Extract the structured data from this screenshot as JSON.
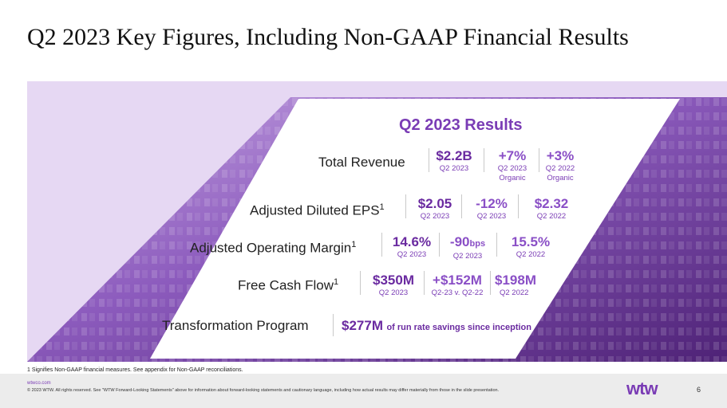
{
  "slide": {
    "title": "Q2 2023 Key Figures, Including Non-GAAP Financial Results",
    "results_heading": "Q2 2023 Results"
  },
  "rows": {
    "total_revenue": {
      "label": "Total Revenue",
      "m1": {
        "value": "$2.2B",
        "sub": "Q2 2023"
      },
      "m2": {
        "value": "+7%",
        "sub1": "Q2 2023",
        "sub2": "Organic"
      },
      "m3": {
        "value": "+3%",
        "sub1": "Q2 2022",
        "sub2": "Organic"
      }
    },
    "eps": {
      "label": "Adjusted Diluted EPS",
      "sup": "1",
      "m1": {
        "value": "$2.05",
        "sub": "Q2 2023"
      },
      "m2": {
        "value": "-12%",
        "sub": "Q2 2023"
      },
      "m3": {
        "value": "$2.32",
        "sub": "Q2 2022"
      }
    },
    "margin": {
      "label": "Adjusted Operating Margin",
      "sup": "1",
      "m1": {
        "value": "14.6%",
        "sub": "Q2 2023"
      },
      "m2": {
        "value": "-90",
        "unit": "bps",
        "sub": "Q2 2023"
      },
      "m3": {
        "value": "15.5%",
        "sub": "Q2 2022"
      }
    },
    "fcf": {
      "label": "Free Cash Flow",
      "sup": "1",
      "m1": {
        "value": "$350M",
        "sub": "Q2 2023"
      },
      "m2": {
        "value": "+$152M",
        "sub": "Q2-23 v. Q2-22"
      },
      "m3": {
        "value": "$198M",
        "sub": "Q2 2022"
      }
    },
    "transformation": {
      "label": "Transformation Program",
      "value": "$277M",
      "text": "of run rate savings since inception"
    }
  },
  "footer": {
    "footnote": "1 Signifies Non-GAAP financial measures. See appendix for Non-GAAP reconciliations.",
    "url": "wtwco.com",
    "legal": "© 2023 WTW. All rights reserved. See \"WTW Forward-Looking Statements\" above for information about forward-looking statements and cautionary language, including how actual results may differ materially from those in the slide presentation.",
    "logo": "wtw",
    "page": "6"
  },
  "colors": {
    "accent": "#7a3cb5",
    "band_light": "#e6d8f3",
    "band_dark": "#5a2a86"
  }
}
